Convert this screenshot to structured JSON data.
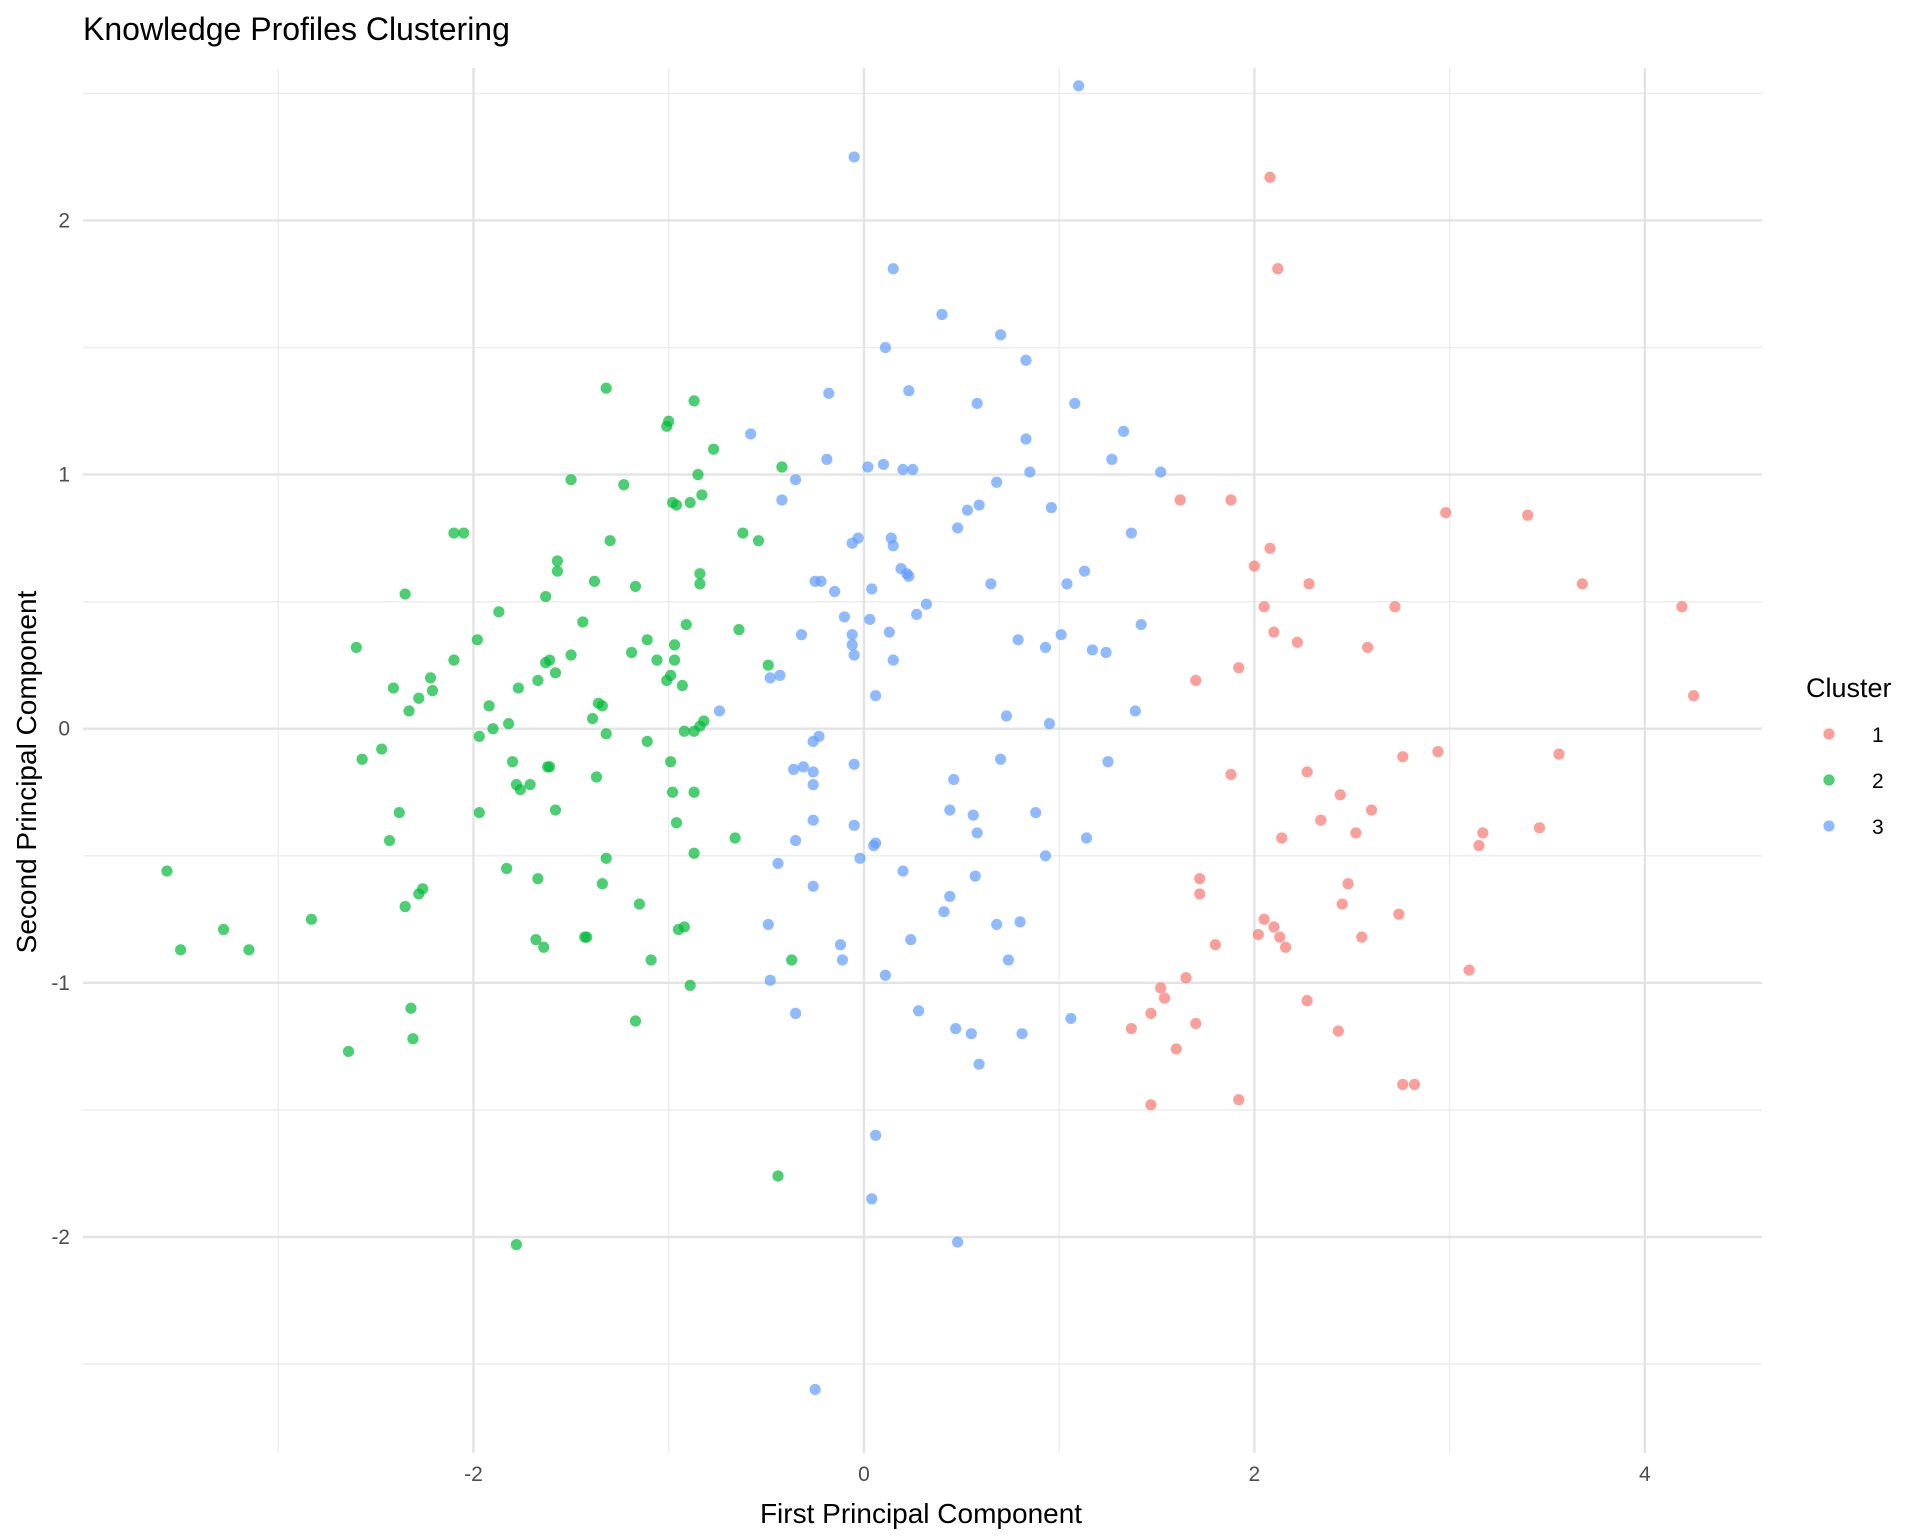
{
  "chart_data": {
    "type": "scatter",
    "title": "Knowledge Profiles Clustering",
    "xlabel": "First Principal Component",
    "ylabel": "Second Principal Component",
    "xlim": [
      -4.0,
      4.6
    ],
    "ylim": [
      -2.85,
      2.6
    ],
    "x_ticks": [
      -2,
      0,
      2,
      4
    ],
    "x_tick_labels": [
      "-2",
      "0",
      "2",
      "4"
    ],
    "y_ticks": [
      -2,
      -1,
      0,
      1,
      2
    ],
    "y_tick_labels": [
      "-2",
      "-1",
      "0",
      "1",
      "2"
    ],
    "grid": true,
    "legend": {
      "title": "Cluster",
      "position": "right",
      "entries": [
        {
          "label": "1",
          "color": "#F8766D"
        },
        {
          "label": "2",
          "color": "#00BA38"
        },
        {
          "label": "3",
          "color": "#619CFF"
        }
      ]
    },
    "series": [
      {
        "name": "1",
        "color": "#F8766D",
        "points": [
          [
            2.08,
            2.17
          ],
          [
            2.12,
            1.81
          ],
          [
            1.62,
            0.9
          ],
          [
            1.88,
            0.9
          ],
          [
            2.98,
            0.85
          ],
          [
            3.4,
            0.84
          ],
          [
            2.08,
            0.71
          ],
          [
            2.0,
            0.64
          ],
          [
            2.28,
            0.57
          ],
          [
            3.68,
            0.57
          ],
          [
            2.05,
            0.48
          ],
          [
            2.72,
            0.48
          ],
          [
            4.19,
            0.48
          ],
          [
            2.1,
            0.38
          ],
          [
            2.22,
            0.34
          ],
          [
            2.58,
            0.32
          ],
          [
            1.92,
            0.24
          ],
          [
            1.7,
            0.19
          ],
          [
            4.25,
            0.13
          ],
          [
            2.76,
            -0.11
          ],
          [
            2.94,
            -0.09
          ],
          [
            3.56,
            -0.1
          ],
          [
            1.88,
            -0.18
          ],
          [
            2.27,
            -0.17
          ],
          [
            2.44,
            -0.26
          ],
          [
            2.6,
            -0.32
          ],
          [
            2.34,
            -0.36
          ],
          [
            2.52,
            -0.41
          ],
          [
            3.17,
            -0.41
          ],
          [
            3.46,
            -0.39
          ],
          [
            2.14,
            -0.43
          ],
          [
            3.15,
            -0.46
          ],
          [
            1.72,
            -0.59
          ],
          [
            2.48,
            -0.61
          ],
          [
            1.72,
            -0.65
          ],
          [
            2.45,
            -0.69
          ],
          [
            2.74,
            -0.73
          ],
          [
            2.05,
            -0.75
          ],
          [
            2.1,
            -0.78
          ],
          [
            2.02,
            -0.81
          ],
          [
            2.13,
            -0.82
          ],
          [
            2.55,
            -0.82
          ],
          [
            1.8,
            -0.85
          ],
          [
            2.16,
            -0.86
          ],
          [
            3.1,
            -0.95
          ],
          [
            1.65,
            -0.98
          ],
          [
            1.52,
            -1.02
          ],
          [
            1.54,
            -1.06
          ],
          [
            2.27,
            -1.07
          ],
          [
            1.47,
            -1.12
          ],
          [
            1.7,
            -1.16
          ],
          [
            1.37,
            -1.18
          ],
          [
            2.43,
            -1.19
          ],
          [
            1.6,
            -1.26
          ],
          [
            2.76,
            -1.4
          ],
          [
            2.82,
            -1.4
          ],
          [
            1.47,
            -1.48
          ],
          [
            1.92,
            -1.46
          ]
        ]
      },
      {
        "name": "2",
        "color": "#00BA38",
        "points": [
          [
            -1.32,
            1.34
          ],
          [
            -0.87,
            1.29
          ],
          [
            -1.0,
            1.21
          ],
          [
            -1.01,
            1.19
          ],
          [
            -0.77,
            1.1
          ],
          [
            -0.42,
            1.03
          ],
          [
            -0.85,
            1.0
          ],
          [
            -1.5,
            0.98
          ],
          [
            -1.23,
            0.96
          ],
          [
            -0.83,
            0.92
          ],
          [
            -0.89,
            0.89
          ],
          [
            -0.98,
            0.89
          ],
          [
            -0.96,
            0.88
          ],
          [
            -2.1,
            0.77
          ],
          [
            -2.05,
            0.77
          ],
          [
            -0.62,
            0.77
          ],
          [
            -0.54,
            0.74
          ],
          [
            -1.3,
            0.74
          ],
          [
            -1.57,
            0.66
          ],
          [
            -1.57,
            0.62
          ],
          [
            -0.84,
            0.61
          ],
          [
            -1.38,
            0.58
          ],
          [
            -1.17,
            0.56
          ],
          [
            -0.84,
            0.57
          ],
          [
            -2.35,
            0.53
          ],
          [
            -1.63,
            0.52
          ],
          [
            -1.87,
            0.46
          ],
          [
            -1.44,
            0.42
          ],
          [
            -0.91,
            0.41
          ],
          [
            -0.64,
            0.39
          ],
          [
            -1.11,
            0.35
          ],
          [
            -1.98,
            0.35
          ],
          [
            -0.97,
            0.33
          ],
          [
            -2.6,
            0.32
          ],
          [
            -1.19,
            0.3
          ],
          [
            -1.5,
            0.29
          ],
          [
            -1.06,
            0.27
          ],
          [
            -0.97,
            0.27
          ],
          [
            -2.1,
            0.27
          ],
          [
            -1.63,
            0.26
          ],
          [
            -1.61,
            0.27
          ],
          [
            -0.49,
            0.25
          ],
          [
            -1.58,
            0.22
          ],
          [
            -0.99,
            0.21
          ],
          [
            -1.01,
            0.19
          ],
          [
            -2.22,
            0.2
          ],
          [
            -1.67,
            0.19
          ],
          [
            -0.93,
            0.17
          ],
          [
            -2.41,
            0.16
          ],
          [
            -1.77,
            0.16
          ],
          [
            -2.21,
            0.15
          ],
          [
            -2.28,
            0.12
          ],
          [
            -1.34,
            0.09
          ],
          [
            -1.36,
            0.1
          ],
          [
            -1.92,
            0.09
          ],
          [
            -2.33,
            0.07
          ],
          [
            -0.82,
            0.03
          ],
          [
            -1.39,
            0.04
          ],
          [
            -1.82,
            0.02
          ],
          [
            -1.9,
            0.0
          ],
          [
            -0.84,
            0.01
          ],
          [
            -0.92,
            -0.01
          ],
          [
            -0.87,
            -0.01
          ],
          [
            -1.32,
            -0.02
          ],
          [
            -1.97,
            -0.03
          ],
          [
            -1.11,
            -0.05
          ],
          [
            -2.47,
            -0.08
          ],
          [
            -2.57,
            -0.12
          ],
          [
            -0.99,
            -0.13
          ],
          [
            -1.8,
            -0.13
          ],
          [
            -1.62,
            -0.15
          ],
          [
            -1.61,
            -0.15
          ],
          [
            -1.37,
            -0.19
          ],
          [
            -1.78,
            -0.22
          ],
          [
            -1.71,
            -0.22
          ],
          [
            -1.76,
            -0.24
          ],
          [
            -0.98,
            -0.25
          ],
          [
            -0.87,
            -0.25
          ],
          [
            -2.38,
            -0.33
          ],
          [
            -1.58,
            -0.32
          ],
          [
            -1.97,
            -0.33
          ],
          [
            -0.96,
            -0.37
          ],
          [
            -2.43,
            -0.44
          ],
          [
            -0.66,
            -0.43
          ],
          [
            -0.87,
            -0.49
          ],
          [
            -1.32,
            -0.51
          ],
          [
            -1.83,
            -0.55
          ],
          [
            -3.57,
            -0.56
          ],
          [
            -1.67,
            -0.59
          ],
          [
            -1.34,
            -0.61
          ],
          [
            -2.26,
            -0.63
          ],
          [
            -2.28,
            -0.65
          ],
          [
            -2.35,
            -0.7
          ],
          [
            -1.15,
            -0.69
          ],
          [
            -2.83,
            -0.75
          ],
          [
            -3.28,
            -0.79
          ],
          [
            -0.92,
            -0.78
          ],
          [
            -0.95,
            -0.79
          ],
          [
            -1.43,
            -0.82
          ],
          [
            -1.42,
            -0.82
          ],
          [
            -1.68,
            -0.83
          ],
          [
            -1.64,
            -0.86
          ],
          [
            -3.5,
            -0.87
          ],
          [
            -3.15,
            -0.87
          ],
          [
            -1.09,
            -0.91
          ],
          [
            -0.37,
            -0.91
          ],
          [
            -0.89,
            -1.01
          ],
          [
            -2.32,
            -1.1
          ],
          [
            -1.17,
            -1.15
          ],
          [
            -2.31,
            -1.22
          ],
          [
            -2.64,
            -1.27
          ],
          [
            -0.44,
            -1.76
          ],
          [
            -1.78,
            -2.03
          ]
        ]
      },
      {
        "name": "3",
        "color": "#619CFF",
        "points": [
          [
            1.1,
            2.53
          ],
          [
            -0.05,
            2.25
          ],
          [
            0.15,
            1.81
          ],
          [
            0.4,
            1.63
          ],
          [
            0.7,
            1.55
          ],
          [
            0.11,
            1.5
          ],
          [
            0.83,
            1.45
          ],
          [
            -0.18,
            1.32
          ],
          [
            0.23,
            1.33
          ],
          [
            1.08,
            1.28
          ],
          [
            0.58,
            1.28
          ],
          [
            1.33,
            1.17
          ],
          [
            -0.58,
            1.16
          ],
          [
            0.83,
            1.14
          ],
          [
            -0.19,
            1.06
          ],
          [
            1.27,
            1.06
          ],
          [
            0.02,
            1.03
          ],
          [
            0.1,
            1.04
          ],
          [
            0.2,
            1.02
          ],
          [
            0.25,
            1.02
          ],
          [
            0.85,
            1.01
          ],
          [
            1.52,
            1.01
          ],
          [
            -0.35,
            0.98
          ],
          [
            0.68,
            0.97
          ],
          [
            -0.42,
            0.9
          ],
          [
            0.59,
            0.88
          ],
          [
            0.53,
            0.86
          ],
          [
            0.96,
            0.87
          ],
          [
            0.48,
            0.79
          ],
          [
            1.37,
            0.77
          ],
          [
            0.14,
            0.75
          ],
          [
            -0.03,
            0.75
          ],
          [
            -0.06,
            0.73
          ],
          [
            0.15,
            0.72
          ],
          [
            0.19,
            0.63
          ],
          [
            0.22,
            0.61
          ],
          [
            0.23,
            0.6
          ],
          [
            1.13,
            0.62
          ],
          [
            -0.25,
            0.58
          ],
          [
            -0.22,
            0.58
          ],
          [
            0.65,
            0.57
          ],
          [
            1.04,
            0.57
          ],
          [
            0.04,
            0.55
          ],
          [
            -0.15,
            0.54
          ],
          [
            0.32,
            0.49
          ],
          [
            0.27,
            0.45
          ],
          [
            -0.1,
            0.44
          ],
          [
            0.03,
            0.43
          ],
          [
            1.42,
            0.41
          ],
          [
            -0.06,
            0.37
          ],
          [
            0.13,
            0.38
          ],
          [
            1.01,
            0.37
          ],
          [
            -0.32,
            0.37
          ],
          [
            0.79,
            0.35
          ],
          [
            -0.06,
            0.33
          ],
          [
            1.17,
            0.31
          ],
          [
            1.24,
            0.3
          ],
          [
            0.93,
            0.32
          ],
          [
            -0.05,
            0.29
          ],
          [
            0.15,
            0.27
          ],
          [
            -0.43,
            0.21
          ],
          [
            -0.48,
            0.2
          ],
          [
            0.06,
            0.13
          ],
          [
            -0.74,
            0.07
          ],
          [
            1.39,
            0.07
          ],
          [
            0.73,
            0.05
          ],
          [
            0.95,
            0.02
          ],
          [
            -0.23,
            -0.03
          ],
          [
            -0.26,
            -0.05
          ],
          [
            0.7,
            -0.12
          ],
          [
            -0.05,
            -0.14
          ],
          [
            1.25,
            -0.13
          ],
          [
            -0.31,
            -0.15
          ],
          [
            -0.26,
            -0.17
          ],
          [
            -0.36,
            -0.16
          ],
          [
            0.46,
            -0.2
          ],
          [
            -0.26,
            -0.22
          ],
          [
            0.56,
            -0.34
          ],
          [
            0.44,
            -0.32
          ],
          [
            0.88,
            -0.33
          ],
          [
            -0.26,
            -0.36
          ],
          [
            -0.05,
            -0.38
          ],
          [
            0.58,
            -0.41
          ],
          [
            1.14,
            -0.43
          ],
          [
            -0.35,
            -0.44
          ],
          [
            0.05,
            -0.46
          ],
          [
            0.06,
            -0.45
          ],
          [
            -0.02,
            -0.51
          ],
          [
            -0.44,
            -0.53
          ],
          [
            0.93,
            -0.5
          ],
          [
            0.2,
            -0.56
          ],
          [
            0.57,
            -0.58
          ],
          [
            -0.26,
            -0.62
          ],
          [
            0.44,
            -0.66
          ],
          [
            0.41,
            -0.72
          ],
          [
            -0.49,
            -0.77
          ],
          [
            0.68,
            -0.77
          ],
          [
            0.8,
            -0.76
          ],
          [
            0.24,
            -0.83
          ],
          [
            -0.12,
            -0.85
          ],
          [
            -0.11,
            -0.91
          ],
          [
            0.74,
            -0.91
          ],
          [
            0.11,
            -0.97
          ],
          [
            -0.48,
            -0.99
          ],
          [
            -0.35,
            -1.12
          ],
          [
            0.28,
            -1.11
          ],
          [
            1.06,
            -1.14
          ],
          [
            0.47,
            -1.18
          ],
          [
            0.55,
            -1.2
          ],
          [
            0.81,
            -1.2
          ],
          [
            0.59,
            -1.32
          ],
          [
            0.06,
            -1.6
          ],
          [
            0.04,
            -1.85
          ],
          [
            0.48,
            -2.02
          ],
          [
            -0.25,
            -2.6
          ]
        ]
      }
    ]
  }
}
